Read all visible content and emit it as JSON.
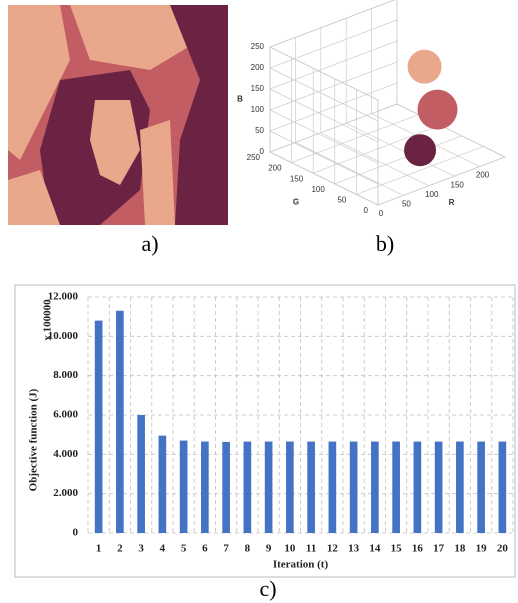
{
  "captions": [
    "a)",
    "b)",
    "c)"
  ],
  "chart_data": [
    {
      "type": "scatter3d",
      "xlabel": "R",
      "ylabel": "G",
      "zlabel": "B",
      "x": [
        110,
        192,
        232
      ],
      "y": [
        32,
        88,
        165
      ],
      "z": [
        64,
        95,
        140
      ],
      "colors": [
        "#6b2343",
        "#c25d63",
        "#e9a78c"
      ],
      "xlim": [
        0,
        250
      ],
      "ylim": [
        0,
        250
      ],
      "zlim": [
        0,
        250
      ],
      "xticks": [
        0,
        50,
        100,
        150,
        200
      ],
      "yticks": [
        0,
        50,
        100,
        150,
        200,
        250
      ],
      "zticks": [
        0,
        50,
        100,
        150,
        200,
        250
      ]
    },
    {
      "type": "bar",
      "xlabel": "Iteration (t)",
      "ylabel": "Objective function (J)",
      "annotation": "x 100000",
      "categories": [
        "1",
        "2",
        "3",
        "4",
        "5",
        "6",
        "7",
        "8",
        "9",
        "10",
        "11",
        "12",
        "13",
        "14",
        "15",
        "16",
        "17",
        "18",
        "19",
        "20"
      ],
      "values": [
        10.8,
        11.3,
        6.0,
        4.95,
        4.7,
        4.65,
        4.63,
        4.65,
        4.65,
        4.65,
        4.65,
        4.65,
        4.65,
        4.65,
        4.65,
        4.65,
        4.65,
        4.65,
        4.65,
        4.65
      ],
      "color": "#4472c4",
      "ylim": [
        0,
        12
      ],
      "yticks": [
        {
          "value": 0,
          "label": "0"
        },
        {
          "value": 2,
          "label": "2.000"
        },
        {
          "value": 4,
          "label": "4.000"
        },
        {
          "value": 6,
          "label": "6.000"
        },
        {
          "value": 8,
          "label": "8.000"
        },
        {
          "value": 10,
          "label": "10.000"
        },
        {
          "value": 12,
          "label": "12.000"
        }
      ],
      "grid": true
    }
  ]
}
